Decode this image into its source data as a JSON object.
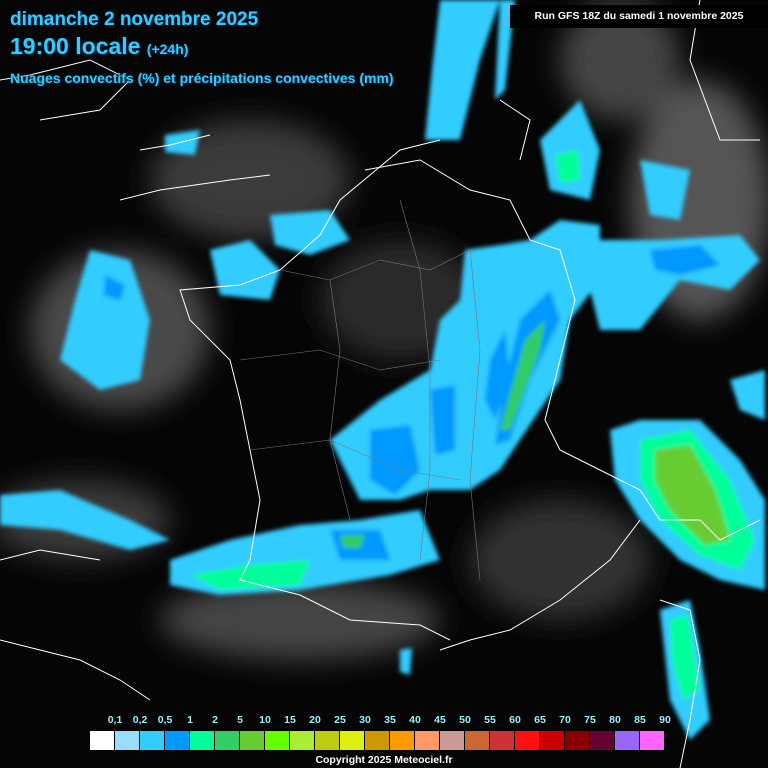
{
  "header": {
    "date": "dimanche 2 novembre 2025",
    "time": "19:00 locale",
    "lead": "(+24h)",
    "parameter": "Nuages convectifs (%) et précipitations convectives (mm)",
    "run": "Run GFS 18Z du samedi 1 novembre 2025"
  },
  "legend": {
    "colors": [
      "#ffffff",
      "#99ddff",
      "#33ccff",
      "#0099ff",
      "#00ff99",
      "#33cc66",
      "#66cc33",
      "#66ff00",
      "#aaee33",
      "#bbcc11",
      "#ddee11",
      "#cc9900",
      "#ff9900",
      "#ff9966",
      "#cc9999",
      "#cc6633",
      "#cc3333",
      "#ff1111",
      "#cc0000",
      "#880000",
      "#660033",
      "#9966ff",
      "#ff66ff"
    ],
    "labels": [
      "0,1",
      "0,2",
      "0,5",
      "1",
      "2",
      "5",
      "10",
      "15",
      "20",
      "25",
      "30",
      "35",
      "40",
      "45",
      "50",
      "55",
      "60",
      "65",
      "70",
      "75",
      "80",
      "85",
      "90"
    ]
  },
  "footer": {
    "copyright": "Copyright 2025 Meteociel.fr"
  }
}
